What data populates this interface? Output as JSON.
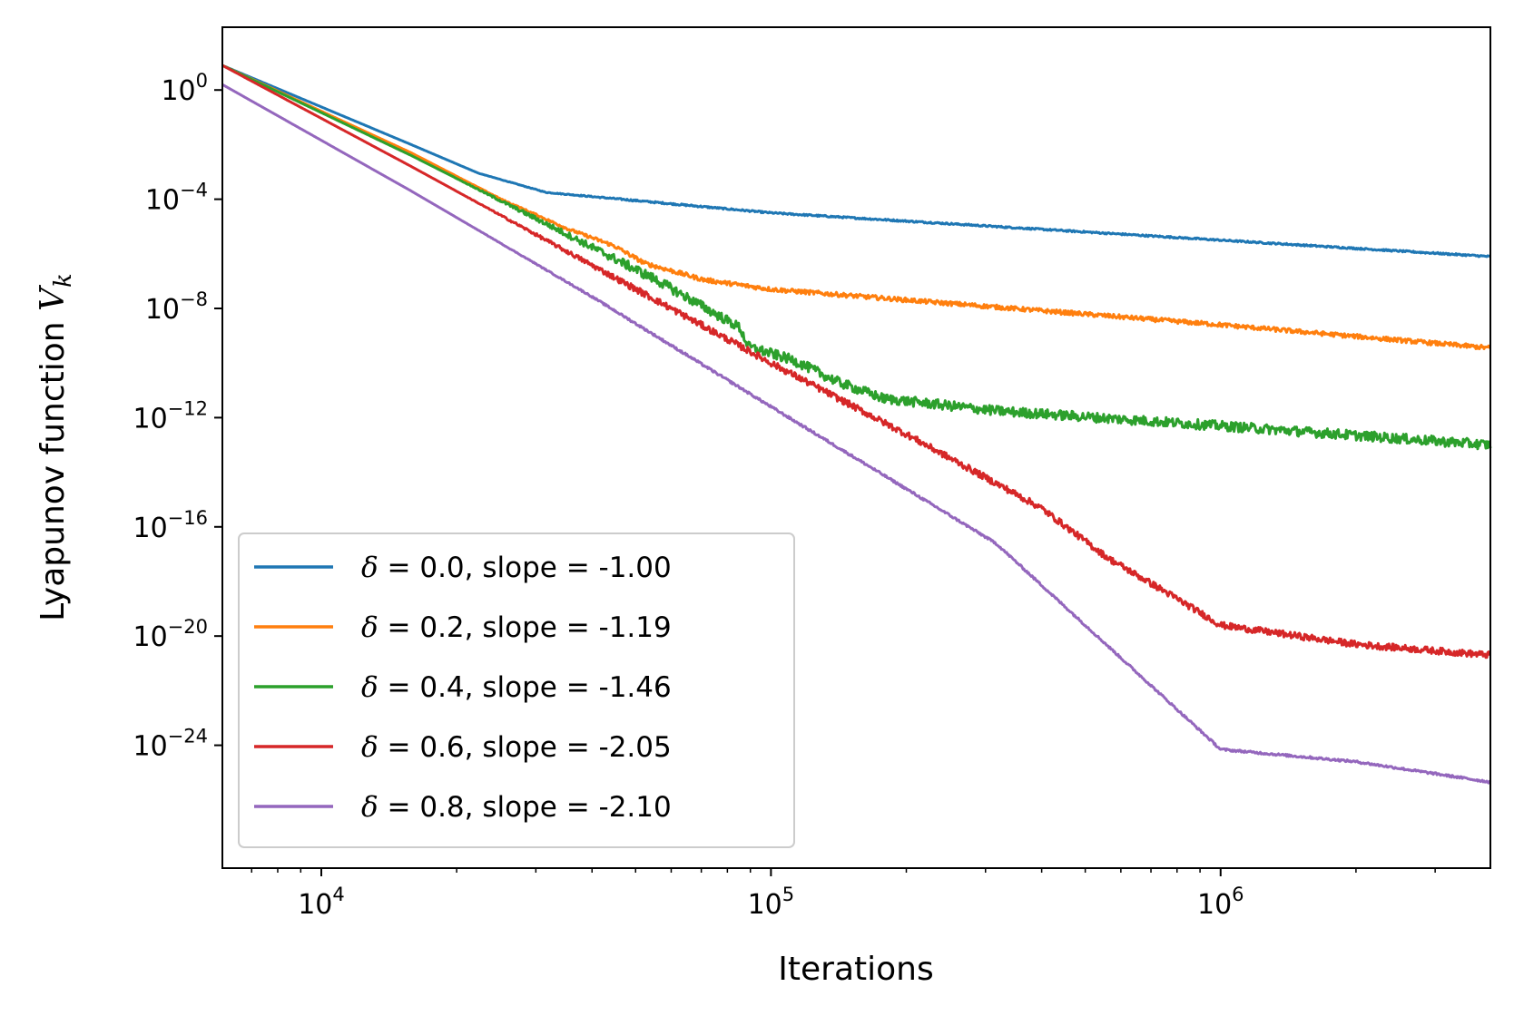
{
  "chart_data": {
    "type": "line",
    "title": "",
    "xlabel": "Iterations",
    "ylabel": "Lyapunov function",
    "ylabel_subscript": "k",
    "ylabel_var": "V",
    "xscale": "log",
    "yscale": "log",
    "xlim_log10": [
      3.78,
      6.6
    ],
    "ylim_log10": [
      2.3,
      -28.5
    ],
    "grid": false,
    "legend_location": "lower-left",
    "x_ticks": [
      {
        "base": "10",
        "exp": "4",
        "log10": 4
      },
      {
        "base": "10",
        "exp": "5",
        "log10": 5
      },
      {
        "base": "10",
        "exp": "6",
        "log10": 6
      }
    ],
    "y_ticks": [
      {
        "base": "10",
        "exp": "0",
        "log10": 0
      },
      {
        "base": "10",
        "exp": "−4",
        "log10": -4
      },
      {
        "base": "10",
        "exp": "−8",
        "log10": -8
      },
      {
        "base": "10",
        "exp": "−12",
        "log10": -12
      },
      {
        "base": "10",
        "exp": "−16",
        "log10": -16
      },
      {
        "base": "10",
        "exp": "−20",
        "log10": -20
      },
      {
        "base": "10",
        "exp": "−24",
        "log10": -24
      }
    ],
    "series": [
      {
        "name": "delta-0.0",
        "delta_symbol": "δ",
        "label_rest": " = 0.0, slope = -1.00",
        "color": "#1f77b4",
        "noise_log10": 0.03,
        "points_log10": [
          [
            3.78,
            0.9
          ],
          [
            4.2,
            -2.0
          ],
          [
            4.35,
            -3.05
          ],
          [
            4.5,
            -3.75
          ],
          [
            4.7,
            -4.05
          ],
          [
            5.0,
            -4.5
          ],
          [
            5.5,
            -5.0
          ],
          [
            6.0,
            -5.5
          ],
          [
            6.6,
            -6.1
          ]
        ]
      },
      {
        "name": "delta-0.2",
        "delta_symbol": "δ",
        "label_rest": " = 0.2, slope = -1.19",
        "color": "#ff7f0e",
        "noise_log10": 0.08,
        "points_log10": [
          [
            3.78,
            0.9
          ],
          [
            4.2,
            -2.3
          ],
          [
            4.4,
            -4.0
          ],
          [
            4.55,
            -5.1
          ],
          [
            4.65,
            -5.7
          ],
          [
            4.72,
            -6.35
          ],
          [
            4.85,
            -6.95
          ],
          [
            5.0,
            -7.3
          ],
          [
            5.5,
            -7.95
          ],
          [
            6.0,
            -8.6
          ],
          [
            6.6,
            -9.45
          ]
        ]
      },
      {
        "name": "delta-0.4",
        "delta_symbol": "δ",
        "label_rest": " = 0.4, slope = -1.46",
        "color": "#2ca02c",
        "noise_log10": 0.18,
        "points_log10": [
          [
            3.78,
            0.9
          ],
          [
            4.2,
            -2.4
          ],
          [
            4.5,
            -4.9
          ],
          [
            4.75,
            -7.0
          ],
          [
            4.93,
            -8.7
          ],
          [
            4.95,
            -9.4
          ],
          [
            5.05,
            -9.9
          ],
          [
            5.15,
            -10.7
          ],
          [
            5.25,
            -11.3
          ],
          [
            5.5,
            -11.75
          ],
          [
            6.0,
            -12.3
          ],
          [
            6.6,
            -13.0
          ]
        ]
      },
      {
        "name": "delta-0.6",
        "delta_symbol": "δ",
        "label_rest": " = 0.6, slope = -2.05",
        "color": "#d62728",
        "noise_log10": 0.12,
        "points_log10": [
          [
            3.78,
            0.9
          ],
          [
            4.2,
            -2.8
          ],
          [
            4.6,
            -6.4
          ],
          [
            5.0,
            -10.0
          ],
          [
            5.3,
            -12.6
          ],
          [
            5.4,
            -13.5
          ],
          [
            5.6,
            -15.3
          ],
          [
            5.75,
            -17.15
          ],
          [
            5.9,
            -18.6
          ],
          [
            6.0,
            -19.6
          ],
          [
            6.3,
            -20.3
          ],
          [
            6.6,
            -20.7
          ]
        ]
      },
      {
        "name": "delta-0.8",
        "delta_symbol": "δ",
        "label_rest": " = 0.8, slope = -2.10",
        "color": "#9467bd",
        "noise_log10": 0.04,
        "points_log10": [
          [
            3.78,
            0.2
          ],
          [
            4.2,
            -3.7
          ],
          [
            4.6,
            -7.55
          ],
          [
            5.0,
            -11.6
          ],
          [
            5.5,
            -16.6
          ],
          [
            6.0,
            -24.15
          ],
          [
            6.3,
            -24.6
          ],
          [
            6.6,
            -25.35
          ]
        ]
      }
    ]
  }
}
